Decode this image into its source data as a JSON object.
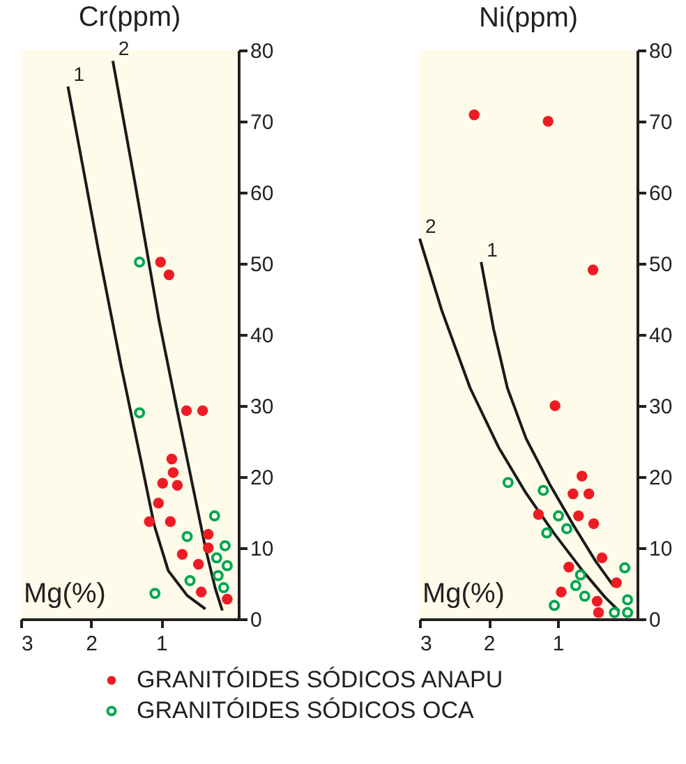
{
  "chart_data": [
    {
      "type": "scatter",
      "ylabel": "Cr(ppm)",
      "xlabel": "Mg(%)",
      "xlim": [
        3,
        -0.1
      ],
      "ylim": [
        0,
        80
      ],
      "xticks": [
        3,
        2,
        1
      ],
      "yticks": [
        0,
        10,
        20,
        30,
        40,
        50,
        60,
        70,
        80
      ],
      "grid": false,
      "marker": "circle",
      "legend": "bottom",
      "series": [
        {
          "name": "GRANITÓIDES SÓDICOS ANAPU",
          "color": "#ed1c24",
          "x": [
            1.01,
            0.89,
            0.64,
            0.41,
            0.85,
            0.83,
            0.98,
            0.77,
            1.04,
            1.17,
            0.87,
            0.33,
            0.33,
            0.7,
            0.47,
            0.43,
            0.06
          ],
          "values": [
            50.2,
            48.4,
            29.3,
            29.3,
            22.5,
            20.6,
            19.1,
            18.8,
            16.3,
            13.7,
            13.7,
            11.9,
            10.0,
            9.1,
            7.7,
            3.8,
            2.8
          ]
        },
        {
          "name": "GRANITÓIDES SÓDICOS OCA",
          "color": "#00a651",
          "x": [
            1.31,
            1.31,
            0.24,
            0.63,
            0.09,
            0.21,
            0.06,
            0.19,
            0.59,
            0.11,
            1.09
          ],
          "values": [
            50.2,
            29.0,
            14.5,
            11.6,
            10.3,
            8.6,
            7.5,
            6.1,
            5.4,
            4.4,
            3.6
          ]
        },
        {
          "type": "line",
          "name": "1",
          "marker": "none",
          "color": "#1a1a1a",
          "x": [
            2.33,
            1.9,
            1.57,
            1.3,
            1.1,
            0.9,
            0.63,
            0.37
          ],
          "values": [
            74.9,
            52.1,
            35.5,
            22.8,
            13.2,
            6.8,
            3.3,
            1.4
          ]
        },
        {
          "type": "line",
          "name": "2",
          "marker": "none",
          "color": "#1a1a1a",
          "x": [
            1.69,
            1.37,
            1.03,
            0.77,
            0.57,
            0.37,
            0.23,
            0.13
          ],
          "values": [
            78.5,
            61.1,
            41.9,
            29.2,
            19.6,
            10.0,
            4.3,
            1.2
          ]
        }
      ]
    },
    {
      "type": "scatter",
      "ylabel": "Ni(ppm)",
      "xlabel": "Mg(%)",
      "xlim": [
        3,
        -0.15
      ],
      "ylim": [
        0,
        80
      ],
      "xticks": [
        3,
        2,
        1
      ],
      "yticks": [
        0,
        10,
        20,
        30,
        40,
        50,
        60,
        70,
        80
      ],
      "grid": false,
      "marker": "circle",
      "series": [
        {
          "color": "#ed1c24",
          "x": [
            2.21,
            1.14,
            0.49,
            1.04,
            0.65,
            0.78,
            0.55,
            1.28,
            0.7,
            0.48,
            0.36,
            0.84,
            0.15,
            0.95,
            0.43,
            0.41
          ],
          "values": [
            70.9,
            70.0,
            49.1,
            30.0,
            20.1,
            17.6,
            17.6,
            14.7,
            14.5,
            13.4,
            8.6,
            7.3,
            5.1,
            3.8,
            2.5,
            0.9
          ]
        },
        {
          "color": "#00a651",
          "x": [
            1.72,
            1.21,
            0.99,
            1.16,
            0.87,
            0.67,
            0.74,
            0.61,
            0.03,
            1.05,
            -0.01,
            0.18,
            -0.01
          ],
          "values": [
            19.2,
            18.1,
            14.5,
            12.1,
            12.7,
            6.2,
            4.7,
            3.2,
            7.2,
            1.9,
            2.7,
            0.9,
            0.9
          ]
        },
        {
          "type": "line",
          "name": "1",
          "marker": "none",
          "color": "#1a1a1a",
          "x": [
            2.11,
            1.93,
            1.73,
            1.46,
            1.12,
            0.78,
            0.45,
            0.19
          ],
          "values": [
            50.2,
            40.8,
            32.5,
            25.4,
            19.0,
            13.3,
            8.1,
            4.6
          ]
        },
        {
          "type": "line",
          "name": "2",
          "marker": "none",
          "color": "#1a1a1a",
          "x": [
            3.0,
            2.68,
            2.27,
            1.86,
            1.46,
            1.05,
            0.65,
            0.31,
            0.11
          ],
          "values": [
            53.5,
            43.4,
            32.5,
            24.2,
            17.7,
            12.0,
            6.9,
            3.0,
            1.1
          ]
        }
      ]
    }
  ]
}
